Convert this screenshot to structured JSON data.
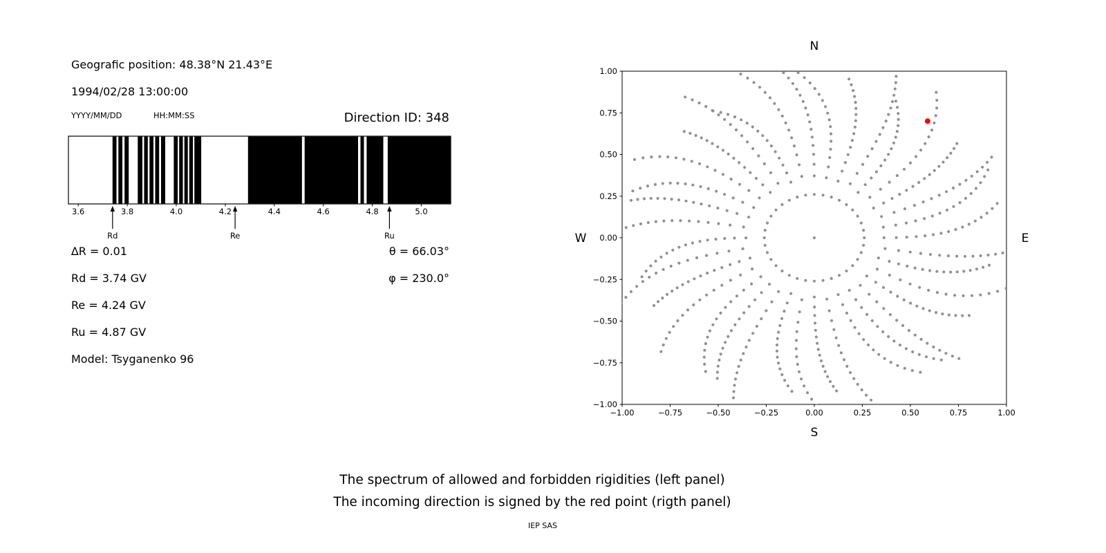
{
  "info": {
    "position": "Geografic position: 48.38°N 21.43°E",
    "datetime": "1994/02/28 13:00:00",
    "date_format_label": "YYYY/MM/DD",
    "time_format_label": "HH:MM:SS",
    "direction_id": "Direction ID: 348",
    "delta_r": "∆R = 0.01",
    "rd": "Rd = 3.74 GV",
    "re": "Re = 4.24 GV",
    "ru": "Ru = 4.87 GV",
    "model": "Model: Tsyganenko 96",
    "theta": "θ = 66.03°",
    "phi": "φ = 230.0°"
  },
  "captions": {
    "line1": "The spectrum of allowed and forbidden rigidities (left panel)",
    "line2": "The incoming direction is signed by the red point (rigth panel)",
    "footer": "IEP SAS"
  },
  "chart_data": [
    {
      "type": "bar",
      "name": "rigidity-spectrum",
      "title": "",
      "xlabel": "",
      "ylabel": "",
      "xlim": [
        3.56,
        5.12
      ],
      "x_ticks": [
        3.6,
        3.8,
        4.0,
        4.2,
        4.4,
        4.6,
        4.8,
        5.0
      ],
      "delta_R_GV": 0.01,
      "Rd_GV": 3.74,
      "Re_GV": 4.24,
      "Ru_GV": 4.87,
      "allowed_color": "#000000",
      "forbidden_color": "#ffffff",
      "allowed_intervals": [
        [
          3.74,
          3.756
        ],
        [
          3.764,
          3.78
        ],
        [
          3.789,
          3.806
        ],
        [
          3.843,
          3.862
        ],
        [
          3.869,
          3.884
        ],
        [
          3.891,
          3.907
        ],
        [
          3.914,
          3.93
        ],
        [
          3.938,
          3.955
        ],
        [
          3.99,
          4.006
        ],
        [
          4.012,
          4.027
        ],
        [
          4.033,
          4.047
        ],
        [
          4.053,
          4.068
        ],
        [
          4.074,
          4.102
        ],
        [
          4.293,
          4.513
        ],
        [
          4.524,
          4.742
        ],
        [
          4.752,
          4.766
        ],
        [
          4.777,
          4.845
        ],
        [
          4.863,
          5.12
        ]
      ],
      "markers": [
        {
          "label": "Rd",
          "x": 3.74
        },
        {
          "label": "Re",
          "x": 4.24
        },
        {
          "label": "Ru",
          "x": 4.87
        }
      ]
    },
    {
      "type": "scatter",
      "name": "incoming-direction-map",
      "title": "",
      "compass": {
        "top": "N",
        "bottom": "S",
        "left": "W",
        "right": "E"
      },
      "xlim": [
        -1.0,
        1.0
      ],
      "ylim": [
        -1.0,
        1.0
      ],
      "x_ticks": [
        -1.0,
        -0.75,
        -0.5,
        -0.25,
        0.0,
        0.25,
        0.5,
        0.75,
        1.0
      ],
      "y_ticks": [
        -1.0,
        -0.75,
        -0.5,
        -0.25,
        0.0,
        0.25,
        0.5,
        0.75,
        1.0
      ],
      "grid": false,
      "dot_color": "#919191",
      "red_point_color": "#ff0000",
      "red_point": {
        "x": 0.59,
        "y": 0.7,
        "direction_id": 348,
        "theta_deg": 66.03,
        "phi_deg": 230.0
      },
      "grey_directions": {
        "n_spokes": 36,
        "azimuth_step_deg": 10,
        "points_per_spoke": 17,
        "r_inner": 0.26,
        "r_outer_base": 1.0,
        "r_outer_var": 0.08,
        "curvature_rad": -0.26,
        "center_point": true
      }
    }
  ]
}
